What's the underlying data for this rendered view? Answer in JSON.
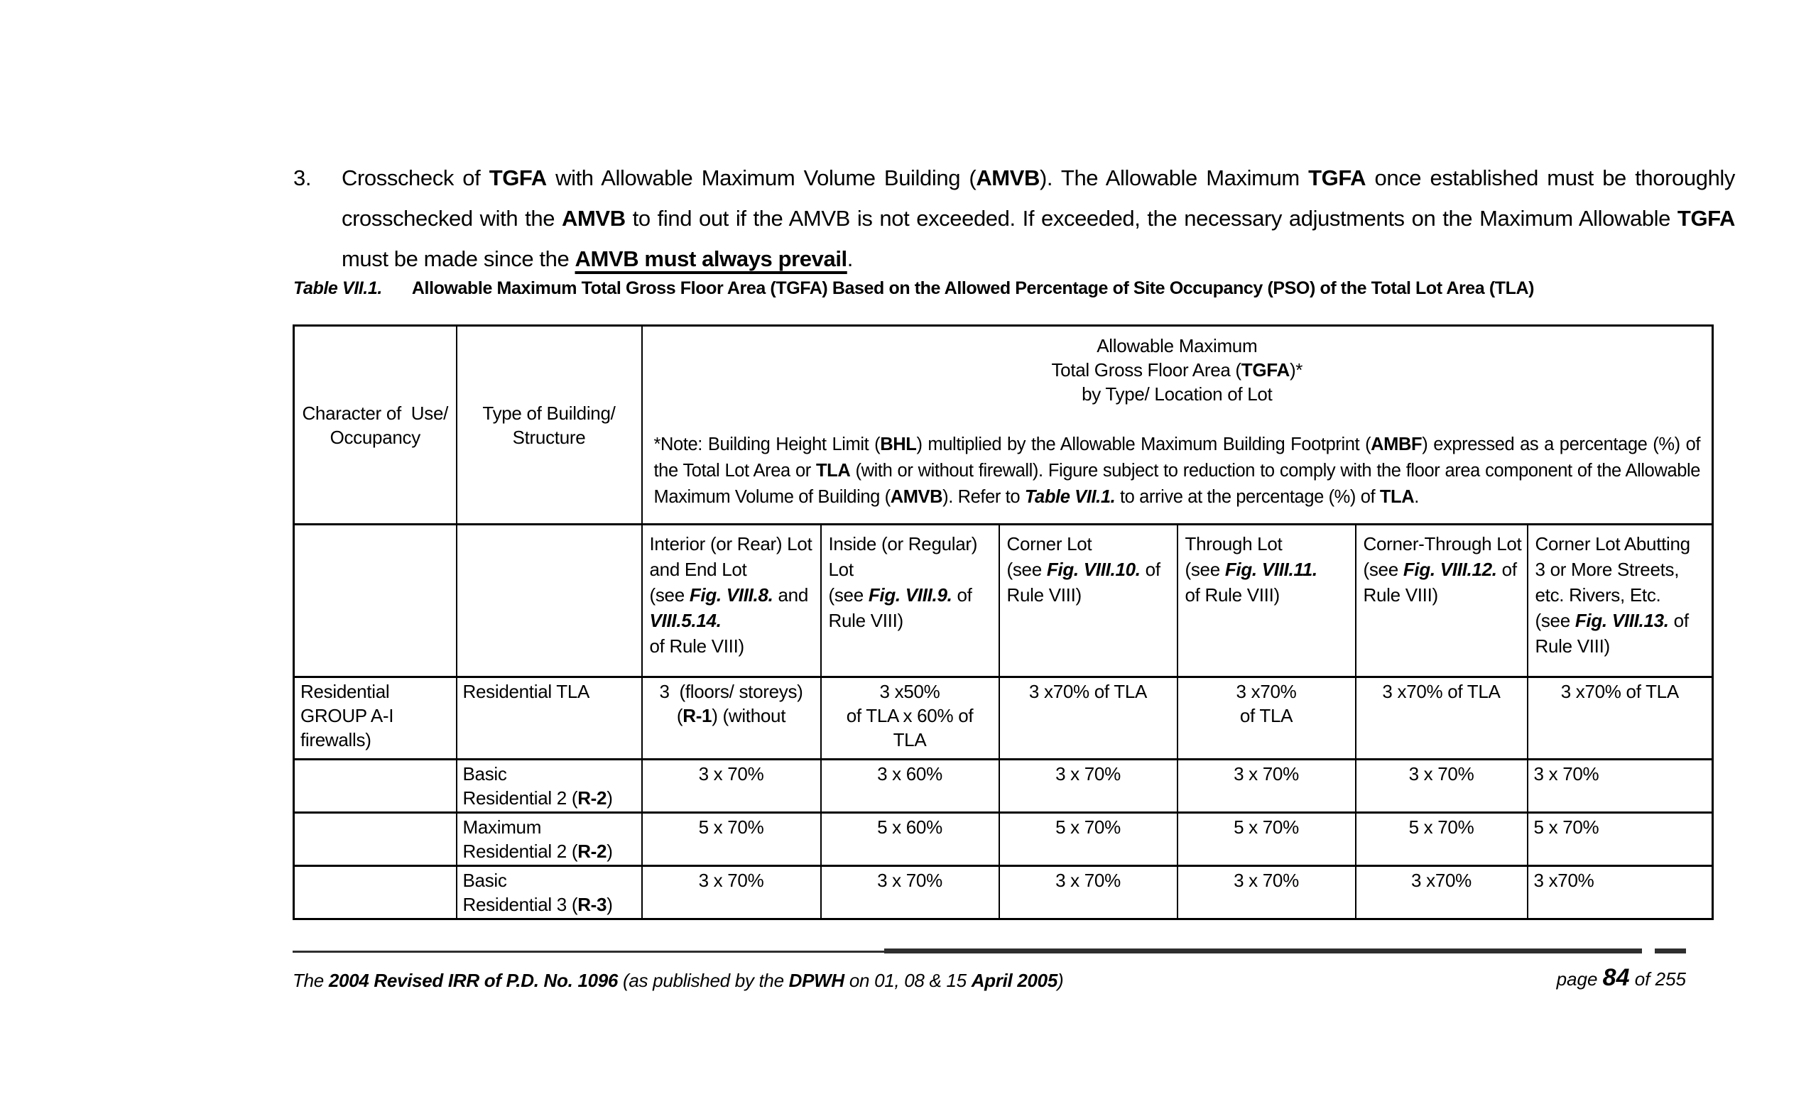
{
  "colors": {
    "background": "#ffffff",
    "text": "#000000",
    "table_border": "#000000",
    "footer_rule": "#2f2f2f"
  },
  "intro": {
    "number": "3.",
    "segments": [
      {
        "t": "Crosscheck of "
      },
      {
        "t": "TGFA",
        "b": true
      },
      {
        "t": " with Allowable Maximum Volume Building ("
      },
      {
        "t": "AMVB",
        "b": true
      },
      {
        "t": "). The Allowable Maximum "
      },
      {
        "t": "TGFA",
        "b": true
      },
      {
        "t": " once established must be thoroughly crosschecked with the "
      },
      {
        "t": "AMVB",
        "b": true
      },
      {
        "t": " to find out if the AMVB is not exceeded. If exceeded, the necessary adjustments on the Maximum Allowable "
      },
      {
        "t": "TGFA",
        "b": true
      },
      {
        "t": " must be made since the "
      },
      {
        "t": "AMVB must always prevail",
        "b": true,
        "u": true
      },
      {
        "t": "."
      }
    ]
  },
  "table_title": {
    "label": "Table VII.1.",
    "text": "Allowable Maximum Total Gross Floor Area (TGFA) Based on the Allowed Percentage of Site Occupancy (PSO) of the Total Lot Area (TLA)"
  },
  "table": {
    "header": {
      "col1_segments": [
        {
          "t": "Character of  Use/"
        },
        {
          "br": true
        },
        {
          "t": "Occupancy"
        }
      ],
      "col2_segments": [
        {
          "t": "Type of Building/"
        },
        {
          "br": true
        },
        {
          "t": "Structure"
        }
      ],
      "tgfa_title_segments": [
        {
          "t": "Allowable Maximum"
        },
        {
          "br": true
        },
        {
          "t": "Total Gross Floor Area ("
        },
        {
          "t": "TGFA",
          "b": true
        },
        {
          "t": ")*"
        },
        {
          "br": true
        },
        {
          "t": "by Type/ Location of Lot"
        }
      ],
      "note_segments": [
        {
          "t": "*Note: Building Height Limit ("
        },
        {
          "t": "BHL",
          "b": true
        },
        {
          "t": ") multiplied by the Allowable Maximum Building Footprint ("
        },
        {
          "t": "AMBF",
          "b": true
        },
        {
          "t": ") expressed as a percentage (%) of the Total Lot Area or "
        },
        {
          "t": "TLA",
          "b": true
        },
        {
          "t": " (with or without firewall). Figure subject to reduction to comply with the floor area component of the Allowable Maximum Volume of Building ("
        },
        {
          "t": "AMVB",
          "b": true
        },
        {
          "t": "). Refer to "
        },
        {
          "t": "Table VII.1.",
          "b": true,
          "i": true
        },
        {
          "t": " to arrive at the percentage (%) of "
        },
        {
          "t": "TLA",
          "b": true
        },
        {
          "t": "."
        }
      ]
    },
    "subheaders": [
      [
        {
          "t": "Interior (or Rear) Lot"
        },
        {
          "br": true
        },
        {
          "t": "and End Lot"
        },
        {
          "br": true
        },
        {
          "t": "(see "
        },
        {
          "t": "Fig. VIII.8.",
          "b": true,
          "i": true
        },
        {
          "t": " and"
        },
        {
          "br": true
        },
        {
          "t": "VIII.5.14.",
          "b": true,
          "i": true
        },
        {
          "br": true
        },
        {
          "t": "of Rule VIII)"
        }
      ],
      [
        {
          "t": "Inside (or Regular)"
        },
        {
          "br": true
        },
        {
          "t": "Lot"
        },
        {
          "br": true
        },
        {
          "t": "(see "
        },
        {
          "t": "Fig. VIII.9.",
          "b": true,
          "i": true
        },
        {
          "t": " of"
        },
        {
          "br": true
        },
        {
          "t": "Rule VIII)"
        }
      ],
      [
        {
          "t": "Corner Lot"
        },
        {
          "br": true
        },
        {
          "t": "(see "
        },
        {
          "t": "Fig. VIII.10.",
          "b": true,
          "i": true
        },
        {
          "t": " of"
        },
        {
          "br": true
        },
        {
          "t": "Rule VIII)"
        }
      ],
      [
        {
          "t": "Through Lot"
        },
        {
          "br": true
        },
        {
          "t": "(see "
        },
        {
          "t": "Fig. VIII.11.",
          "b": true,
          "i": true
        },
        {
          "br": true
        },
        {
          "t": "of Rule VIII)"
        }
      ],
      [
        {
          "t": "Corner-Through Lot"
        },
        {
          "br": true
        },
        {
          "t": "(see "
        },
        {
          "t": "Fig. VIII.12.",
          "b": true,
          "i": true
        },
        {
          "t": " of"
        },
        {
          "br": true
        },
        {
          "t": "Rule VIII)"
        }
      ],
      [
        {
          "t": "Corner Lot Abutting"
        },
        {
          "br": true
        },
        {
          "t": "3 or More Streets,"
        },
        {
          "br": true
        },
        {
          "t": "etc. Rivers, Etc."
        },
        {
          "br": true
        },
        {
          "t": "(see "
        },
        {
          "t": "Fig. VIII.13.",
          "b": true,
          "i": true
        },
        {
          "t": " of"
        },
        {
          "br": true
        },
        {
          "t": "Rule VIII)"
        }
      ]
    ],
    "rows": [
      {
        "character": [
          {
            "t": "Residential"
          },
          {
            "br": true
          },
          {
            "t": "GROUP A-I"
          },
          {
            "br": true
          },
          {
            "t": "firewalls)"
          }
        ],
        "type": [
          {
            "t": "Residential TLA"
          }
        ],
        "values": [
          [
            {
              "t": "3  (floors/ storeys)"
            },
            {
              "br": true
            },
            {
              "t": "("
            },
            {
              "t": "R-1",
              "b": true
            },
            {
              "t": ") (without"
            }
          ],
          [
            {
              "t": "3 x50%"
            },
            {
              "br": true
            },
            {
              "t": "of TLA x 60% of"
            },
            {
              "br": true
            },
            {
              "t": "TLA"
            }
          ],
          [
            {
              "t": "3 x70% of TLA"
            }
          ],
          [
            {
              "t": "3 x70%"
            },
            {
              "br": true
            },
            {
              "t": "of TLA"
            }
          ],
          [
            {
              "t": "3 x70% of TLA"
            }
          ],
          [
            {
              "t": "3 x70% of TLA"
            }
          ]
        ]
      },
      {
        "character": [],
        "type": [
          {
            "t": "Basic"
          },
          {
            "br": true
          },
          {
            "t": "Residential 2 ("
          },
          {
            "t": "R-2",
            "b": true
          },
          {
            "t": ")"
          }
        ],
        "values": [
          [
            {
              "t": "3 x 70%"
            }
          ],
          [
            {
              "t": "3 x 60%"
            }
          ],
          [
            {
              "t": "3 x 70%"
            }
          ],
          [
            {
              "t": "3 x 70%"
            }
          ],
          [
            {
              "t": "3 x 70%"
            }
          ],
          [
            {
              "t": "3 x 70%"
            }
          ]
        ]
      },
      {
        "character": [],
        "type": [
          {
            "t": "Maximum"
          },
          {
            "br": true
          },
          {
            "t": "Residential 2 ("
          },
          {
            "t": "R-2",
            "b": true
          },
          {
            "t": ")"
          }
        ],
        "values": [
          [
            {
              "t": "5 x 70%"
            }
          ],
          [
            {
              "t": "5 x 60%"
            }
          ],
          [
            {
              "t": "5 x 70%"
            }
          ],
          [
            {
              "t": "5 x 70%"
            }
          ],
          [
            {
              "t": "5 x 70%"
            }
          ],
          [
            {
              "t": "5 x 70%"
            }
          ]
        ]
      },
      {
        "character": [],
        "type": [
          {
            "t": "Basic"
          },
          {
            "br": true
          },
          {
            "t": "Residential 3 ("
          },
          {
            "t": "R-3",
            "b": true
          },
          {
            "t": ")"
          }
        ],
        "values": [
          [
            {
              "t": "3 x 70%"
            }
          ],
          [
            {
              "t": "3 x 70%"
            }
          ],
          [
            {
              "t": "3 x 70%"
            }
          ],
          [
            {
              "t": "3 x 70%"
            }
          ],
          [
            {
              "t": "3 x70%"
            }
          ],
          [
            {
              "t": "3 x70%"
            }
          ]
        ]
      }
    ]
  },
  "footer": {
    "left_segments": [
      {
        "t": "The "
      },
      {
        "t": "2004 Revised IRR of P.D. No. 1096",
        "b": true
      },
      {
        "t": " (as published by the "
      },
      {
        "t": "DPWH",
        "b": true
      },
      {
        "t": " on 01, 08 & 15 "
      },
      {
        "t": "April 2005",
        "b": true
      },
      {
        "t": ")"
      }
    ],
    "right_segments": [
      {
        "t": "page "
      },
      {
        "t": "84",
        "b": true,
        "lg": true
      },
      {
        "t": " of 255"
      }
    ]
  }
}
